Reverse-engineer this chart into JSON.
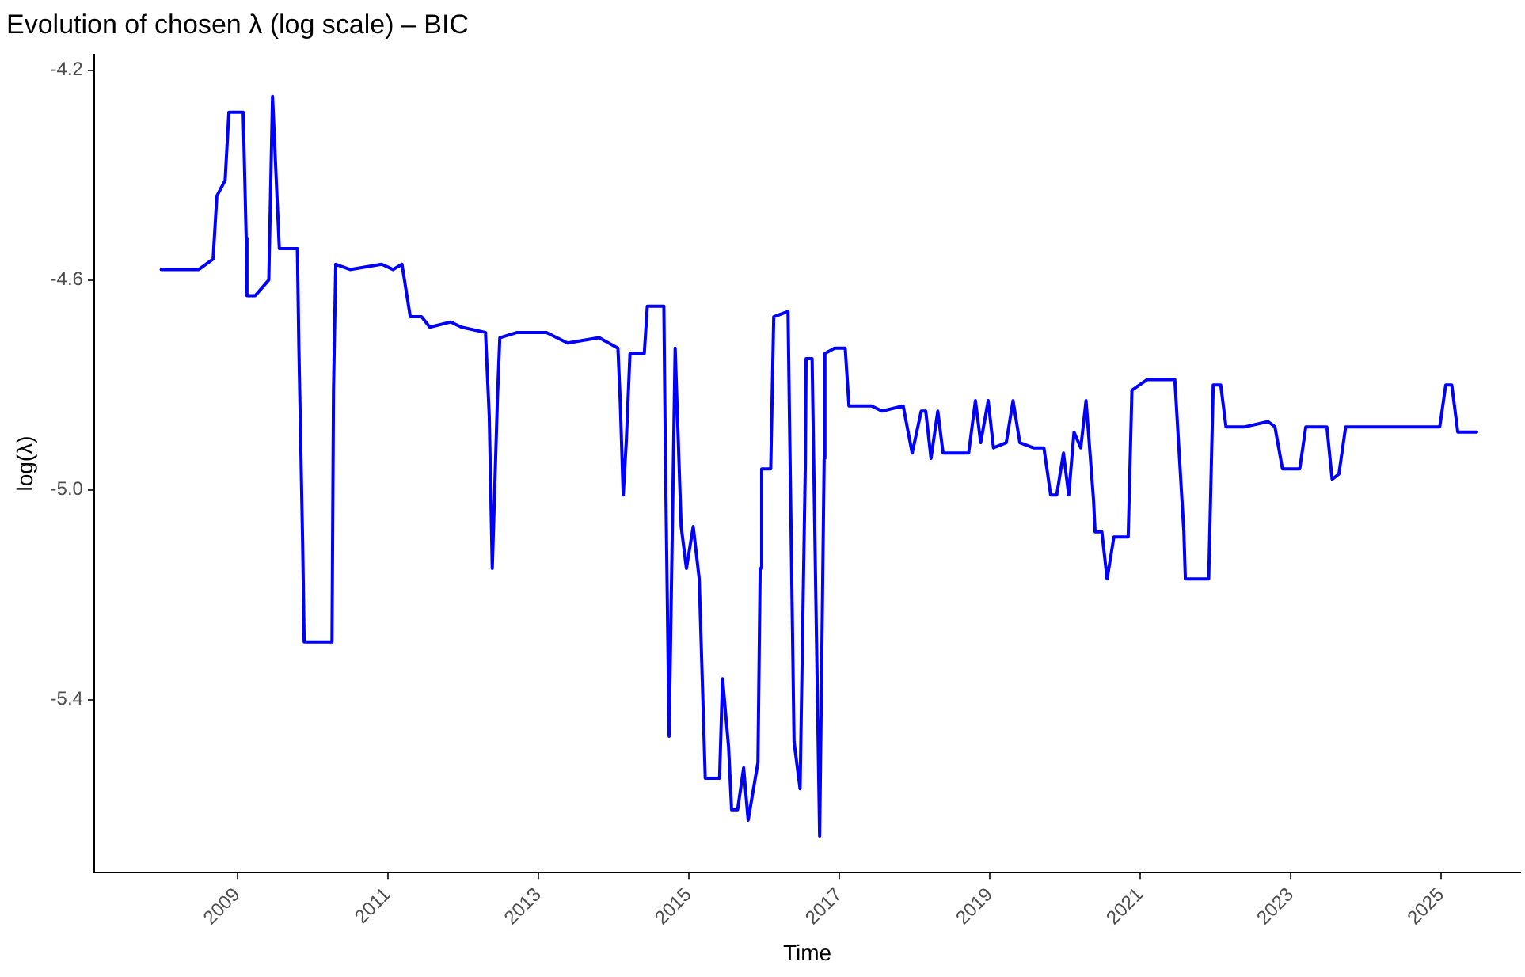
{
  "chart_data": {
    "type": "line",
    "title": "Evolution of chosen λ (log scale) – BIC",
    "xlabel": "Time",
    "ylabel": "log(λ)",
    "x": [
      2007.99,
      2008.49,
      2008.68,
      2008.73,
      2008.84,
      2008.89,
      2009.08,
      2009.12,
      2009.13,
      2009.24,
      2009.42,
      2009.47,
      2009.56,
      2009.8,
      2009.82,
      2009.87,
      2009.89,
      2010.26,
      2010.28,
      2010.31,
      2010.5,
      2010.92,
      2011.07,
      2011.19,
      2011.3,
      2011.45,
      2011.56,
      2011.84,
      2011.98,
      2012.3,
      2012.35,
      2012.39,
      2012.46,
      2012.49,
      2012.72,
      2013.11,
      2013.39,
      2013.81,
      2014.06,
      2014.09,
      2014.13,
      2014.17,
      2014.22,
      2014.41,
      2014.45,
      2014.67,
      2014.69,
      2014.74,
      2014.78,
      2014.82,
      2014.9,
      2014.97,
      2015.06,
      2015.14,
      2015.22,
      2015.41,
      2015.45,
      2015.53,
      2015.57,
      2015.65,
      2015.73,
      2015.79,
      2015.92,
      2015.95,
      2015.97,
      2016.09,
      2016.13,
      2016.32,
      2016.34,
      2016.4,
      2016.48,
      2016.55,
      2016.56,
      2016.64,
      2016.69,
      2016.74,
      2016.8,
      2016.81,
      2016.94,
      2017.08,
      2017.13,
      2017.43,
      2017.57,
      2017.85,
      2017.97,
      2018.09,
      2018.15,
      2018.22,
      2018.31,
      2018.38,
      2018.72,
      2018.81,
      2018.88,
      2018.98,
      2019.05,
      2019.22,
      2019.31,
      2019.4,
      2019.58,
      2019.72,
      2019.81,
      2019.89,
      2019.98,
      2020.05,
      2020.12,
      2020.21,
      2020.28,
      2020.38,
      2020.4,
      2020.49,
      2020.56,
      2020.65,
      2020.84,
      2020.89,
      2021.09,
      2021.46,
      2021.58,
      2021.6,
      2021.91,
      2021.97,
      2022.07,
      2022.14,
      2022.39,
      2022.7,
      2022.79,
      2022.89,
      2023.12,
      2023.2,
      2023.29,
      2023.48,
      2023.55,
      2023.64,
      2023.73,
      2024.5,
      2024.98,
      2025.06,
      2025.14,
      2025.22,
      2025.47
    ],
    "series": [
      {
        "color": "#0000ff",
        "values": [
          -4.58,
          -4.58,
          -4.56,
          -4.44,
          -4.41,
          -4.28,
          -4.28,
          -4.52,
          -4.63,
          -4.63,
          -4.6,
          -4.25,
          -4.54,
          -4.54,
          -4.73,
          -5.1,
          -5.29,
          -5.29,
          -4.81,
          -4.57,
          -4.58,
          -4.57,
          -4.58,
          -4.57,
          -4.67,
          -4.67,
          -4.69,
          -4.68,
          -4.69,
          -4.7,
          -4.86,
          -5.15,
          -4.82,
          -4.71,
          -4.7,
          -4.7,
          -4.72,
          -4.71,
          -4.73,
          -4.83,
          -5.01,
          -4.91,
          -4.74,
          -4.74,
          -4.65,
          -4.65,
          -4.93,
          -5.47,
          -5.1,
          -4.73,
          -5.07,
          -5.15,
          -5.07,
          -5.17,
          -5.55,
          -5.55,
          -5.36,
          -5.49,
          -5.61,
          -5.61,
          -5.53,
          -5.63,
          -5.52,
          -5.15,
          -4.96,
          -4.96,
          -4.67,
          -4.66,
          -4.87,
          -5.48,
          -5.57,
          -4.95,
          -4.75,
          -4.75,
          -5.21,
          -5.66,
          -4.94,
          -4.74,
          -4.73,
          -4.73,
          -4.84,
          -4.84,
          -4.85,
          -4.84,
          -4.93,
          -4.85,
          -4.85,
          -4.94,
          -4.85,
          -4.93,
          -4.93,
          -4.83,
          -4.91,
          -4.83,
          -4.92,
          -4.91,
          -4.83,
          -4.91,
          -4.92,
          -4.92,
          -5.01,
          -5.01,
          -4.93,
          -5.01,
          -4.89,
          -4.92,
          -4.83,
          -5.02,
          -5.08,
          -5.08,
          -5.17,
          -5.09,
          -5.09,
          -4.81,
          -4.79,
          -4.79,
          -5.08,
          -5.17,
          -5.17,
          -4.8,
          -4.8,
          -4.88,
          -4.88,
          -4.87,
          -4.88,
          -4.96,
          -4.96,
          -4.88,
          -4.88,
          -4.88,
          -4.98,
          -4.97,
          -4.88,
          -4.88,
          -4.88,
          -4.8,
          -4.8,
          -4.89,
          -4.89
        ]
      }
    ],
    "xlim": [
      2007.1,
      2026.05
    ],
    "xticks": [
      2009,
      2011,
      2013,
      2015,
      2017,
      2019,
      2021,
      2023,
      2025
    ],
    "ylim": [
      -5.73,
      -4.17
    ],
    "yticks": [
      -4.2,
      -4.6,
      {
        "value": -5,
        "label": "-5.0"
      },
      -5.4
    ],
    "grid": false,
    "legend": false,
    "marker": "none",
    "line_style": "solid"
  }
}
